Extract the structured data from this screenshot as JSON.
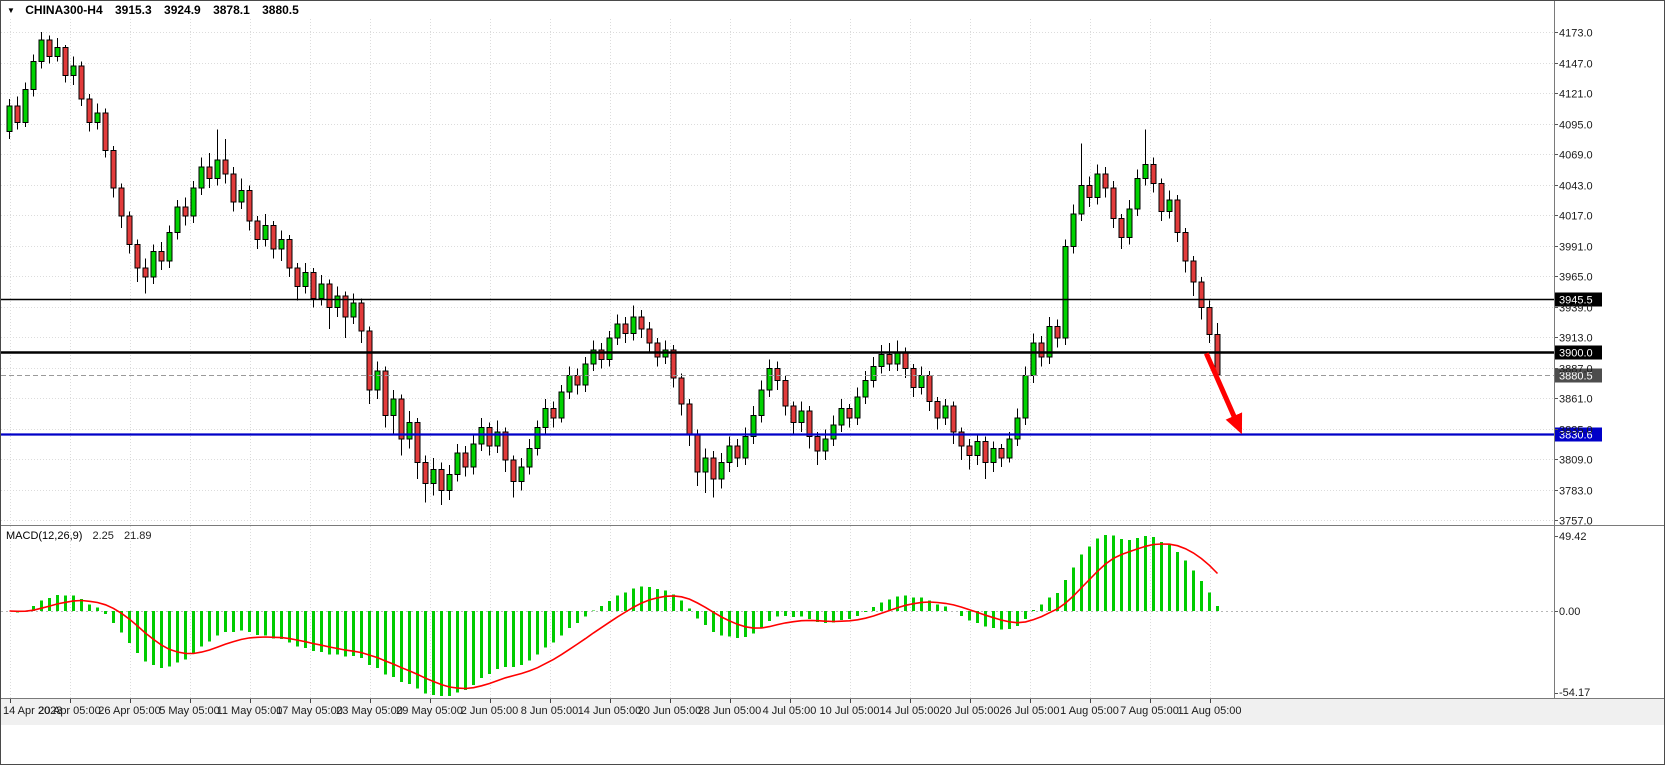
{
  "topbar": {
    "symbol": "CHINA300-H4",
    "open": "3915.3",
    "high": "3924.9",
    "low": "3878.1",
    "close": "3880.5"
  },
  "chart_data": {
    "type": "candlestick",
    "symbol": "CHINA300-H4",
    "timeframe": "H4",
    "price_axis": {
      "max": 4173.0,
      "min": 3757.0,
      "step": 26.0,
      "labels": [
        "4173.0",
        "4147.0",
        "4121.0",
        "4095.0",
        "4069.0",
        "4043.0",
        "4017.0",
        "3991.0",
        "3965.0",
        "3939.0",
        "3913.0",
        "3887.0",
        "3861.0",
        "3835.0",
        "3809.0",
        "3783.0",
        "3757.0"
      ]
    },
    "time_axis": {
      "labels": [
        "14 Apr 2023",
        "20 Apr 05:00",
        "26 Apr 05:00",
        "5 May 05:00",
        "11 May 05:00",
        "17 May 05:00",
        "23 May 05:00",
        "29 May 05:00",
        "2 Jun 05:00",
        "8 Jun 05:00",
        "14 Jun 05:00",
        "20 Jun 05:00",
        "28 Jun 05:00",
        "4 Jul 05:00",
        "10 Jul 05:00",
        "14 Jul 05:00",
        "20 Jul 05:00",
        "26 Jul 05:00",
        "1 Aug 05:00",
        "7 Aug 05:00",
        "11 Aug 05:00"
      ]
    },
    "candles": [
      [
        4088,
        4116,
        4082,
        4110
      ],
      [
        4110,
        4118,
        4090,
        4096
      ],
      [
        4096,
        4130,
        4092,
        4124
      ],
      [
        4124,
        4154,
        4118,
        4148
      ],
      [
        4148,
        4173,
        4142,
        4166
      ],
      [
        4166,
        4170,
        4146,
        4152
      ],
      [
        4152,
        4168,
        4148,
        4160
      ],
      [
        4160,
        4162,
        4130,
        4136
      ],
      [
        4136,
        4152,
        4128,
        4144
      ],
      [
        4144,
        4148,
        4110,
        4116
      ],
      [
        4116,
        4120,
        4088,
        4096
      ],
      [
        4096,
        4112,
        4090,
        4104
      ],
      [
        4104,
        4108,
        4066,
        4072
      ],
      [
        4072,
        4076,
        4032,
        4040
      ],
      [
        4040,
        4044,
        4006,
        4016
      ],
      [
        4016,
        4020,
        3984,
        3992
      ],
      [
        3992,
        3996,
        3960,
        3972
      ],
      [
        3972,
        3980,
        3950,
        3964
      ],
      [
        3964,
        3992,
        3958,
        3986
      ],
      [
        3986,
        3994,
        3970,
        3978
      ],
      [
        3978,
        4008,
        3972,
        4002
      ],
      [
        4002,
        4030,
        3996,
        4024
      ],
      [
        4024,
        4032,
        4008,
        4016
      ],
      [
        4016,
        4046,
        4010,
        4040
      ],
      [
        4040,
        4066,
        4034,
        4058
      ],
      [
        4058,
        4070,
        4040,
        4048
      ],
      [
        4048,
        4090,
        4042,
        4064
      ],
      [
        4064,
        4082,
        4044,
        4052
      ],
      [
        4052,
        4058,
        4020,
        4028
      ],
      [
        4028,
        4048,
        4022,
        4038
      ],
      [
        4038,
        4042,
        4004,
        4012
      ],
      [
        4012,
        4016,
        3988,
        3996
      ],
      [
        3996,
        4018,
        3990,
        4008
      ],
      [
        4008,
        4012,
        3980,
        3988
      ],
      [
        3988,
        4004,
        3978,
        3996
      ],
      [
        3996,
        4000,
        3964,
        3972
      ],
      [
        3972,
        3976,
        3944,
        3956
      ],
      [
        3956,
        3976,
        3950,
        3968
      ],
      [
        3968,
        3972,
        3938,
        3946
      ],
      [
        3946,
        3966,
        3940,
        3958
      ],
      [
        3958,
        3962,
        3920,
        3938
      ],
      [
        3938,
        3956,
        3930,
        3948
      ],
      [
        3948,
        3952,
        3912,
        3930
      ],
      [
        3930,
        3950,
        3924,
        3942
      ],
      [
        3942,
        3946,
        3908,
        3918
      ],
      [
        3918,
        3922,
        3856,
        3868
      ],
      [
        3868,
        3892,
        3860,
        3884
      ],
      [
        3884,
        3888,
        3836,
        3846
      ],
      [
        3846,
        3868,
        3830,
        3860
      ],
      [
        3860,
        3864,
        3812,
        3826
      ],
      [
        3826,
        3850,
        3818,
        3840
      ],
      [
        3840,
        3844,
        3792,
        3806
      ],
      [
        3806,
        3812,
        3772,
        3788
      ],
      [
        3788,
        3810,
        3778,
        3800
      ],
      [
        3800,
        3806,
        3770,
        3782
      ],
      [
        3782,
        3804,
        3774,
        3796
      ],
      [
        3796,
        3822,
        3790,
        3814
      ],
      [
        3814,
        3820,
        3794,
        3802
      ],
      [
        3802,
        3830,
        3796,
        3822
      ],
      [
        3822,
        3844,
        3816,
        3836
      ],
      [
        3836,
        3840,
        3812,
        3820
      ],
      [
        3820,
        3842,
        3814,
        3832
      ],
      [
        3832,
        3836,
        3798,
        3808
      ],
      [
        3808,
        3812,
        3776,
        3790
      ],
      [
        3790,
        3810,
        3782,
        3802
      ],
      [
        3802,
        3826,
        3796,
        3818
      ],
      [
        3818,
        3842,
        3812,
        3836
      ],
      [
        3836,
        3860,
        3830,
        3852
      ],
      [
        3852,
        3858,
        3836,
        3844
      ],
      [
        3844,
        3872,
        3840,
        3866
      ],
      [
        3866,
        3888,
        3860,
        3880
      ],
      [
        3880,
        3886,
        3864,
        3872
      ],
      [
        3872,
        3896,
        3866,
        3890
      ],
      [
        3890,
        3910,
        3884,
        3902
      ],
      [
        3902,
        3908,
        3886,
        3894
      ],
      [
        3894,
        3918,
        3888,
        3912
      ],
      [
        3912,
        3932,
        3906,
        3924
      ],
      [
        3924,
        3930,
        3908,
        3916
      ],
      [
        3916,
        3940,
        3910,
        3930
      ],
      [
        3930,
        3936,
        3912,
        3920
      ],
      [
        3920,
        3926,
        3900,
        3908
      ],
      [
        3908,
        3912,
        3888,
        3896
      ],
      [
        3896,
        3910,
        3890,
        3902
      ],
      [
        3902,
        3906,
        3870,
        3878
      ],
      [
        3878,
        3882,
        3846,
        3856
      ],
      [
        3856,
        3860,
        3820,
        3830
      ],
      [
        3830,
        3834,
        3786,
        3798
      ],
      [
        3798,
        3818,
        3780,
        3810
      ],
      [
        3810,
        3816,
        3776,
        3792
      ],
      [
        3792,
        3814,
        3784,
        3806
      ],
      [
        3806,
        3828,
        3798,
        3820
      ],
      [
        3820,
        3826,
        3802,
        3810
      ],
      [
        3810,
        3836,
        3804,
        3828
      ],
      [
        3828,
        3854,
        3822,
        3846
      ],
      [
        3846,
        3876,
        3840,
        3868
      ],
      [
        3868,
        3894,
        3862,
        3886
      ],
      [
        3886,
        3892,
        3868,
        3876
      ],
      [
        3876,
        3880,
        3846,
        3854
      ],
      [
        3854,
        3858,
        3830,
        3840
      ],
      [
        3840,
        3858,
        3832,
        3850
      ],
      [
        3850,
        3854,
        3818,
        3828
      ],
      [
        3828,
        3832,
        3804,
        3816
      ],
      [
        3816,
        3834,
        3808,
        3826
      ],
      [
        3826,
        3846,
        3820,
        3838
      ],
      [
        3838,
        3860,
        3832,
        3852
      ],
      [
        3852,
        3856,
        3836,
        3844
      ],
      [
        3844,
        3870,
        3838,
        3862
      ],
      [
        3862,
        3884,
        3856,
        3876
      ],
      [
        3876,
        3896,
        3870,
        3888
      ],
      [
        3888,
        3906,
        3882,
        3898
      ],
      [
        3898,
        3908,
        3884,
        3890
      ],
      [
        3890,
        3910,
        3884,
        3900
      ],
      [
        3900,
        3904,
        3878,
        3886
      ],
      [
        3886,
        3890,
        3862,
        3870
      ],
      [
        3870,
        3888,
        3864,
        3880
      ],
      [
        3880,
        3884,
        3850,
        3858
      ],
      [
        3858,
        3862,
        3834,
        3844
      ],
      [
        3844,
        3860,
        3838,
        3854
      ],
      [
        3854,
        3858,
        3822,
        3832
      ],
      [
        3832,
        3836,
        3808,
        3820
      ],
      [
        3820,
        3826,
        3800,
        3812
      ],
      [
        3812,
        3830,
        3804,
        3824
      ],
      [
        3824,
        3828,
        3792,
        3806
      ],
      [
        3806,
        3824,
        3798,
        3818
      ],
      [
        3818,
        3822,
        3802,
        3810
      ],
      [
        3810,
        3832,
        3806,
        3826
      ],
      [
        3826,
        3852,
        3820,
        3844
      ],
      [
        3844,
        3888,
        3838,
        3880
      ],
      [
        3880,
        3916,
        3874,
        3908
      ],
      [
        3908,
        3914,
        3888,
        3896
      ],
      [
        3896,
        3930,
        3890,
        3922
      ],
      [
        3922,
        3928,
        3904,
        3912
      ],
      [
        3912,
        3996,
        3906,
        3990
      ],
      [
        3990,
        4026,
        3984,
        4018
      ],
      [
        4018,
        4078,
        4012,
        4042
      ],
      [
        4042,
        4050,
        4024,
        4032
      ],
      [
        4032,
        4060,
        4026,
        4052
      ],
      [
        4052,
        4058,
        4032,
        4040
      ],
      [
        4040,
        4046,
        4006,
        4014
      ],
      [
        4014,
        4018,
        3988,
        3998
      ],
      [
        3998,
        4030,
        3992,
        4022
      ],
      [
        4022,
        4056,
        4016,
        4048
      ],
      [
        4048,
        4090,
        4042,
        4060
      ],
      [
        4060,
        4066,
        4036,
        4044
      ],
      [
        4044,
        4048,
        4012,
        4020
      ],
      [
        4020,
        4038,
        4014,
        4030
      ],
      [
        4030,
        4034,
        3994,
        4002
      ],
      [
        4002,
        4006,
        3968,
        3978
      ],
      [
        3978,
        3982,
        3948,
        3960
      ],
      [
        3960,
        3964,
        3928,
        3938
      ],
      [
        3938,
        3944,
        3908,
        3915
      ],
      [
        3915.3,
        3924.9,
        3878.1,
        3880.5
      ]
    ],
    "levels": [
      {
        "price": 3945.5,
        "label": "3945.5",
        "color": "#000000",
        "box": "#000000",
        "width": 1.6,
        "style": "solid"
      },
      {
        "price": 3900.0,
        "label": "3900.0",
        "color": "#000000",
        "box": "#000000",
        "width": 2.4,
        "style": "solid"
      },
      {
        "price": 3880.5,
        "label": "3880.5",
        "color": "#9a9a9a",
        "box": "#4d4d4d",
        "width": 1,
        "style": "dashed"
      },
      {
        "price": 3830.6,
        "label": "3830.6",
        "color": "#0000c8",
        "box": "#0000c8",
        "width": 2.2,
        "style": "solid"
      }
    ],
    "arrow": {
      "from_candle": 149.6,
      "from_price": 3899,
      "to_candle": 153.8,
      "to_price": 3834,
      "color": "#ff0000"
    },
    "macd": {
      "label": "MACD(12,26,9)",
      "value_main": "2.25",
      "value_signal": "21.89",
      "fast": 12,
      "slow": 26,
      "signal": 9,
      "axis_labels": [
        {
          "v": 49.42,
          "label": "49.42"
        },
        {
          "v": 0,
          "label": "0.00"
        },
        {
          "v": -54.17,
          "label": "-54.17"
        }
      ],
      "histogram_color": "#00cc00",
      "signal_color": "#ff0000"
    }
  },
  "colors": {
    "bull": "#00d200",
    "bear": "#e23b3b",
    "outline": "#000000",
    "grid": "#dcdcdc",
    "background": "#ffffff",
    "axis_text": "#1a1a1a",
    "separator": "#7a7a7a"
  }
}
